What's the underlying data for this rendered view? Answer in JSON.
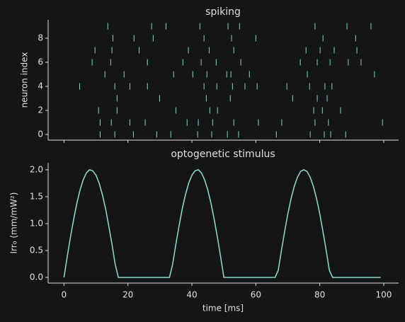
{
  "chart_data": [
    {
      "type": "raster",
      "title": "spiking",
      "ylabel": "neuron index",
      "color": "#8dd3c7",
      "x": [
        13.7,
        27.4,
        31.9,
        42.5,
        51.3,
        54.9,
        78.5,
        88.5,
        96.0,
        15.3,
        21.9,
        27.9,
        43.8,
        52.4,
        60.0,
        81.0,
        91.2,
        9.7,
        15.0,
        23.5,
        38.9,
        45.4,
        53.1,
        75.7,
        80.1,
        84.5,
        91.6,
        8.8,
        14.6,
        26.1,
        37.2,
        42.9,
        47.6,
        55.3,
        73.9,
        79.2,
        83.2,
        88.9,
        92.9,
        12.8,
        18.8,
        34.3,
        40.3,
        44.7,
        50.9,
        52.2,
        58.0,
        76.1,
        97.1,
        4.9,
        15.9,
        20.6,
        26.1,
        43.8,
        47.8,
        52.7,
        56.6,
        60.4,
        69.7,
        76.8,
        81.6,
        83.8,
        16.6,
        29.9,
        44.5,
        52.0,
        71.5,
        79.2,
        82.3,
        10.8,
        16.6,
        35.0,
        45.6,
        48.0,
        78.1,
        80.8,
        86.5,
        11.3,
        14.8,
        20.6,
        25.4,
        38.5,
        42.0,
        46.5,
        53.1,
        60.8,
        68.1,
        78.5,
        82.7,
        99.6,
        11.3,
        15.9,
        21.7,
        29.0,
        33.4,
        41.8,
        46.2,
        51.1,
        54.6,
        66.4,
        77.0,
        81.4,
        83.4,
        88.1
      ],
      "y": [
        9,
        9,
        9,
        9,
        9,
        9,
        9,
        9,
        9,
        8,
        8,
        8,
        8,
        8,
        8,
        8,
        8,
        7,
        7,
        7,
        7,
        7,
        7,
        7,
        7,
        7,
        7,
        6,
        6,
        6,
        6,
        6,
        6,
        6,
        6,
        6,
        6,
        6,
        6,
        5,
        5,
        5,
        5,
        5,
        5,
        5,
        5,
        5,
        5,
        4,
        4,
        4,
        4,
        4,
        4,
        4,
        4,
        4,
        4,
        4,
        4,
        4,
        3,
        3,
        3,
        3,
        3,
        3,
        3,
        2,
        2,
        2,
        2,
        2,
        2,
        2,
        2,
        1,
        1,
        1,
        1,
        1,
        1,
        1,
        1,
        1,
        1,
        1,
        1,
        1,
        0,
        0,
        0,
        0,
        0,
        0,
        0,
        0,
        0,
        0,
        0,
        0,
        0,
        0
      ],
      "xlim": [
        -4.95,
        104.65
      ],
      "ylim": [
        -0.47,
        9.53
      ],
      "xticks": [
        0,
        20,
        40,
        60,
        80,
        100
      ],
      "yticks": [
        0,
        2,
        4,
        6,
        8
      ]
    },
    {
      "type": "line",
      "title": "optogenetic stimulus",
      "xlabel": "time [ms]",
      "ylabel": "Irr₀ (mm/mW²)",
      "color": "#8dd3c7",
      "x": [
        0,
        1,
        2,
        3,
        4,
        5,
        6,
        7,
        8,
        9,
        10,
        11,
        12,
        13,
        14,
        15,
        16,
        17,
        18,
        19,
        20,
        21,
        22,
        23,
        24,
        25,
        26,
        27,
        28,
        29,
        30,
        31,
        32,
        33,
        34,
        35,
        36,
        37,
        38,
        39,
        40,
        41,
        42,
        43,
        44,
        45,
        46,
        47,
        48,
        49,
        50,
        51,
        52,
        53,
        54,
        55,
        56,
        57,
        58,
        59,
        60,
        61,
        62,
        63,
        64,
        65,
        66,
        67,
        68,
        69,
        70,
        71,
        72,
        73,
        74,
        75,
        76,
        77,
        78,
        79,
        80,
        81,
        82,
        83,
        84,
        85,
        86,
        87,
        88,
        89,
        90,
        91,
        92,
        93,
        94,
        95,
        96,
        97,
        98,
        99
      ],
      "values": [
        0,
        0.38,
        0.74,
        1.07,
        1.37,
        1.62,
        1.81,
        1.94,
        2.0,
        1.98,
        1.9,
        1.75,
        1.54,
        1.28,
        0.96,
        0.62,
        0.25,
        0,
        0,
        0,
        0,
        0,
        0,
        0,
        0,
        0,
        0,
        0,
        0,
        0,
        0,
        0,
        0,
        0,
        0.25,
        0.62,
        0.96,
        1.28,
        1.54,
        1.75,
        1.9,
        1.98,
        2.0,
        1.94,
        1.81,
        1.62,
        1.37,
        1.07,
        0.74,
        0.38,
        0,
        0,
        0,
        0,
        0,
        0,
        0,
        0,
        0,
        0,
        0,
        0,
        0,
        0,
        0,
        0,
        0,
        0.13,
        0.5,
        0.85,
        1.18,
        1.46,
        1.69,
        1.86,
        1.97,
        2.0,
        1.97,
        1.86,
        1.69,
        1.46,
        1.18,
        0.85,
        0.5,
        0.13,
        0,
        0,
        0,
        0,
        0,
        0,
        0,
        0,
        0,
        0,
        0,
        0,
        0,
        0,
        0,
        0
      ],
      "xlim": [
        -4.95,
        104.65
      ],
      "ylim": [
        -0.105,
        2.13
      ],
      "xticks": [
        0,
        20,
        40,
        60,
        80,
        100
      ],
      "yticks": [
        {
          "value": 0,
          "label": "0.0"
        },
        {
          "value": 0.5,
          "label": "0.5"
        },
        {
          "value": 1,
          "label": "1.0"
        },
        {
          "value": 1.5,
          "label": "1.5"
        },
        {
          "value": 2,
          "label": "2.0"
        }
      ]
    }
  ]
}
